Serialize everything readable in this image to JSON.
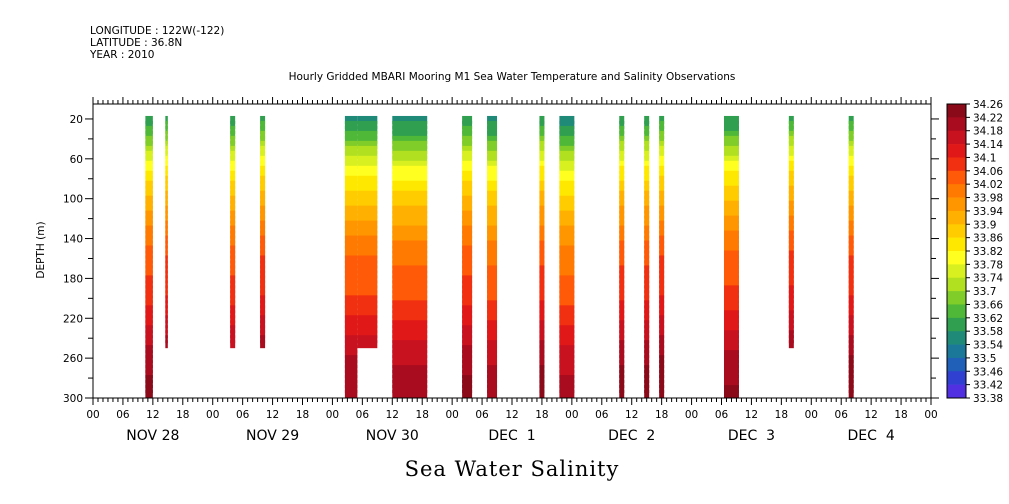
{
  "header": {
    "longitude": "LONGITUDE : 122W(-122)",
    "latitude": "LATITUDE : 36.8N",
    "year": "YEAR : 2010"
  },
  "chart_data": {
    "type": "heatmap",
    "title": "Hourly Gridded MBARI Mooring M1 Sea Water Temperature and Salinity Observations",
    "bottom_title": "Sea Water Salinity",
    "ylabel": "DEPTH (m)",
    "xlabel": "",
    "x_unit": "hours from Nov 28 00:00, 2010",
    "xlim": [
      0,
      168
    ],
    "ylim": [
      300,
      5
    ],
    "y_inverted": true,
    "y_ticks": [
      20,
      60,
      100,
      140,
      180,
      220,
      260,
      300
    ],
    "x_hour_labels": [
      "00",
      "06",
      "12",
      "18"
    ],
    "x_hour_tick_step": 6,
    "day_labels": [
      {
        "label": "NOV 28",
        "hour": 12
      },
      {
        "label": "NOV 29",
        "hour": 36
      },
      {
        "label": "NOV 30",
        "hour": 60
      },
      {
        "label": "DEC  1",
        "hour": 84
      },
      {
        "label": "DEC  2",
        "hour": 108
      },
      {
        "label": "DEC  3",
        "hour": 132
      },
      {
        "label": "DEC  4",
        "hour": 156
      }
    ],
    "colorbar": {
      "min": 33.38,
      "max": 34.26,
      "step": 0.04,
      "labels": [
        "34.26",
        "34.22",
        "34.18",
        "34.14",
        "34.1",
        "34.06",
        "34.02",
        "33.98",
        "33.94",
        "33.9",
        "33.86",
        "33.82",
        "33.78",
        "33.74",
        "33.7",
        "33.66",
        "33.62",
        "33.58",
        "33.54",
        "33.5",
        "33.46",
        "33.42",
        "33.38"
      ],
      "colors": [
        "#8b0a1a",
        "#a80c1e",
        "#c81220",
        "#e01818",
        "#f03010",
        "#ff5a08",
        "#ff7a00",
        "#ff9600",
        "#ffb000",
        "#ffcc00",
        "#ffe800",
        "#ffff20",
        "#d8f020",
        "#b0e020",
        "#80cc28",
        "#50b838",
        "#30a050",
        "#208a78",
        "#1c7898",
        "#2060b8",
        "#3040d0",
        "#5030e0",
        "#7020f0",
        "#c010f0"
      ]
    },
    "profile": [
      {
        "depth": 20,
        "salinity": 33.58
      },
      {
        "depth": 40,
        "salinity": 33.66
      },
      {
        "depth": 60,
        "salinity": 33.76
      },
      {
        "depth": 80,
        "salinity": 33.84
      },
      {
        "depth": 100,
        "salinity": 33.9
      },
      {
        "depth": 120,
        "salinity": 33.95
      },
      {
        "depth": 140,
        "salinity": 34.0
      },
      {
        "depth": 160,
        "salinity": 34.04
      },
      {
        "depth": 180,
        "salinity": 34.06
      },
      {
        "depth": 200,
        "salinity": 34.08
      },
      {
        "depth": 220,
        "salinity": 34.12
      },
      {
        "depth": 240,
        "salinity": 34.16
      },
      {
        "depth": 260,
        "salinity": 34.2
      },
      {
        "depth": 280,
        "salinity": 34.22
      },
      {
        "depth": 300,
        "salinity": 34.24
      }
    ],
    "segments": [
      {
        "t0": 10.5,
        "t1": 12,
        "z0": 20,
        "z1": 300,
        "offset": 0
      },
      {
        "t0": 14.5,
        "t1": 15,
        "z0": 20,
        "z1": 250,
        "offset": 0.02
      },
      {
        "t0": 27.5,
        "t1": 28.5,
        "z0": 20,
        "z1": 250,
        "offset": 0
      },
      {
        "t0": 33.5,
        "t1": 34.5,
        "z0": 20,
        "z1": 250,
        "offset": 0.02
      },
      {
        "t0": 50.5,
        "t1": 53,
        "z0": 20,
        "z1": 300,
        "offset": -0.02
      },
      {
        "t0": 53,
        "t1": 57,
        "z0": 20,
        "z1": 250,
        "offset": -0.02
      },
      {
        "t0": 60,
        "t1": 67,
        "z0": 20,
        "z1": 300,
        "offset": -0.03
      },
      {
        "t0": 74,
        "t1": 76,
        "z0": 20,
        "z1": 300,
        "offset": 0
      },
      {
        "t0": 79,
        "t1": 81,
        "z0": 20,
        "z1": 300,
        "offset": -0.03
      },
      {
        "t0": 89.5,
        "t1": 90.5,
        "z0": 20,
        "z1": 300,
        "offset": 0.01
      },
      {
        "t0": 93.5,
        "t1": 96.5,
        "z0": 20,
        "z1": 300,
        "offset": -0.04
      },
      {
        "t0": 105.5,
        "t1": 106.5,
        "z0": 20,
        "z1": 300,
        "offset": 0.01
      },
      {
        "t0": 110.5,
        "t1": 111.5,
        "z0": 20,
        "z1": 300,
        "offset": 0.01
      },
      {
        "t0": 113.5,
        "t1": 114.5,
        "z0": 20,
        "z1": 300,
        "offset": 0.02
      },
      {
        "t0": 126.5,
        "t1": 129.5,
        "z0": 20,
        "z1": 300,
        "offset": -0.01
      },
      {
        "t0": 139.5,
        "t1": 140.5,
        "z0": 20,
        "z1": 250,
        "offset": 0.03
      },
      {
        "t0": 151.5,
        "t1": 152.5,
        "z0": 20,
        "z1": 300,
        "offset": 0.02
      }
    ]
  }
}
